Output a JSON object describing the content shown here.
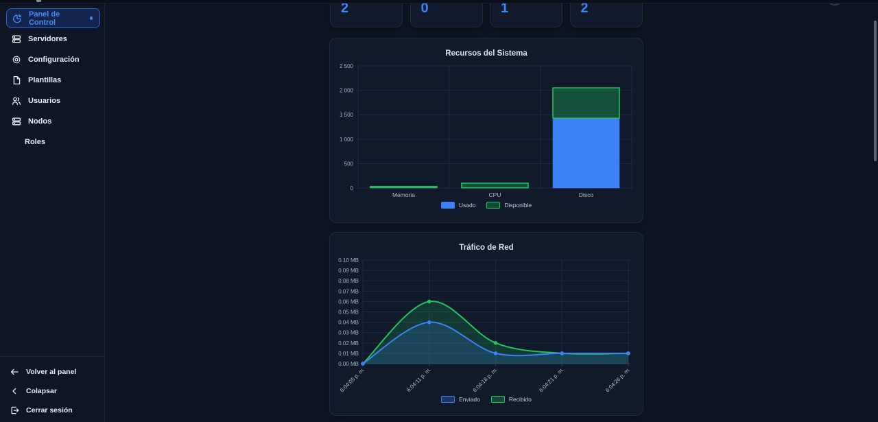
{
  "colors": {
    "accent_blue": "#3e86f5",
    "series_blue": "#3b82f6",
    "series_green": "#22c55e",
    "grid": "#1d2a42",
    "axis_text": "#9fb0c5",
    "category_text": "#b4bfd0"
  },
  "sidebar": {
    "items": [
      {
        "label": "Panel de Control",
        "icon": "pie-chart-icon",
        "active": true
      },
      {
        "label": "Servidores",
        "icon": "server-icon",
        "active": false
      },
      {
        "label": "Configuración",
        "icon": "gear-icon",
        "active": false
      },
      {
        "label": "Plantillas",
        "icon": "document-icon",
        "active": false
      },
      {
        "label": "Usuarios",
        "icon": "users-icon",
        "active": false
      },
      {
        "label": "Nodos",
        "icon": "server-icon",
        "active": false
      },
      {
        "label": "Roles",
        "icon": null,
        "active": false
      }
    ],
    "footer_items": [
      {
        "label": "Volver al panel",
        "icon": "arrow-left-icon"
      },
      {
        "label": "Colapsar",
        "icon": "chevron-left-icon"
      },
      {
        "label": "Cerrar sesión",
        "icon": "logout-icon"
      }
    ]
  },
  "stat_cards": [
    {
      "value": "2"
    },
    {
      "value": "0"
    },
    {
      "value": "1"
    },
    {
      "value": "2"
    }
  ],
  "chart_data": [
    {
      "type": "bar",
      "title": "Recursos del Sistema",
      "stacked": true,
      "categories": [
        "Memoria",
        "CPU",
        "Disco"
      ],
      "series": [
        {
          "name": "Usado",
          "color": "#3b82f6",
          "values": [
            8,
            4,
            1430
          ]
        },
        {
          "name": "Disponible",
          "color": "#22c55e",
          "values": [
            24,
            96,
            620
          ]
        }
      ],
      "ylim": [
        0,
        2500
      ],
      "yticks": [
        "0",
        "500",
        "1 000",
        "1 500",
        "2 000",
        "2 500"
      ],
      "legend_position": "bottom",
      "grid": true
    },
    {
      "type": "area",
      "title": "Tráfico de Red",
      "x": [
        "6:04:05 p. m.",
        "6:04:11 p. m.",
        "6:04:16 p. m.",
        "6:04:21 p. m.",
        "6:04:26 p. m."
      ],
      "series": [
        {
          "name": "Enviado",
          "color": "#3b82f6",
          "values": [
            0.0,
            0.04,
            0.01,
            0.01,
            0.01
          ]
        },
        {
          "name": "Recibido",
          "color": "#22c55e",
          "values": [
            0.0,
            0.06,
            0.02,
            0.01,
            0.01
          ]
        }
      ],
      "ylim": [
        0,
        0.1
      ],
      "yticks": [
        "0.00 MB",
        "0.01 MB",
        "0.02 MB",
        "0.03 MB",
        "0.04 MB",
        "0.05 MB",
        "0.06 MB",
        "0.07 MB",
        "0.08 MB",
        "0.09 MB",
        "0.10 MB"
      ],
      "legend_position": "bottom",
      "grid": true
    }
  ]
}
